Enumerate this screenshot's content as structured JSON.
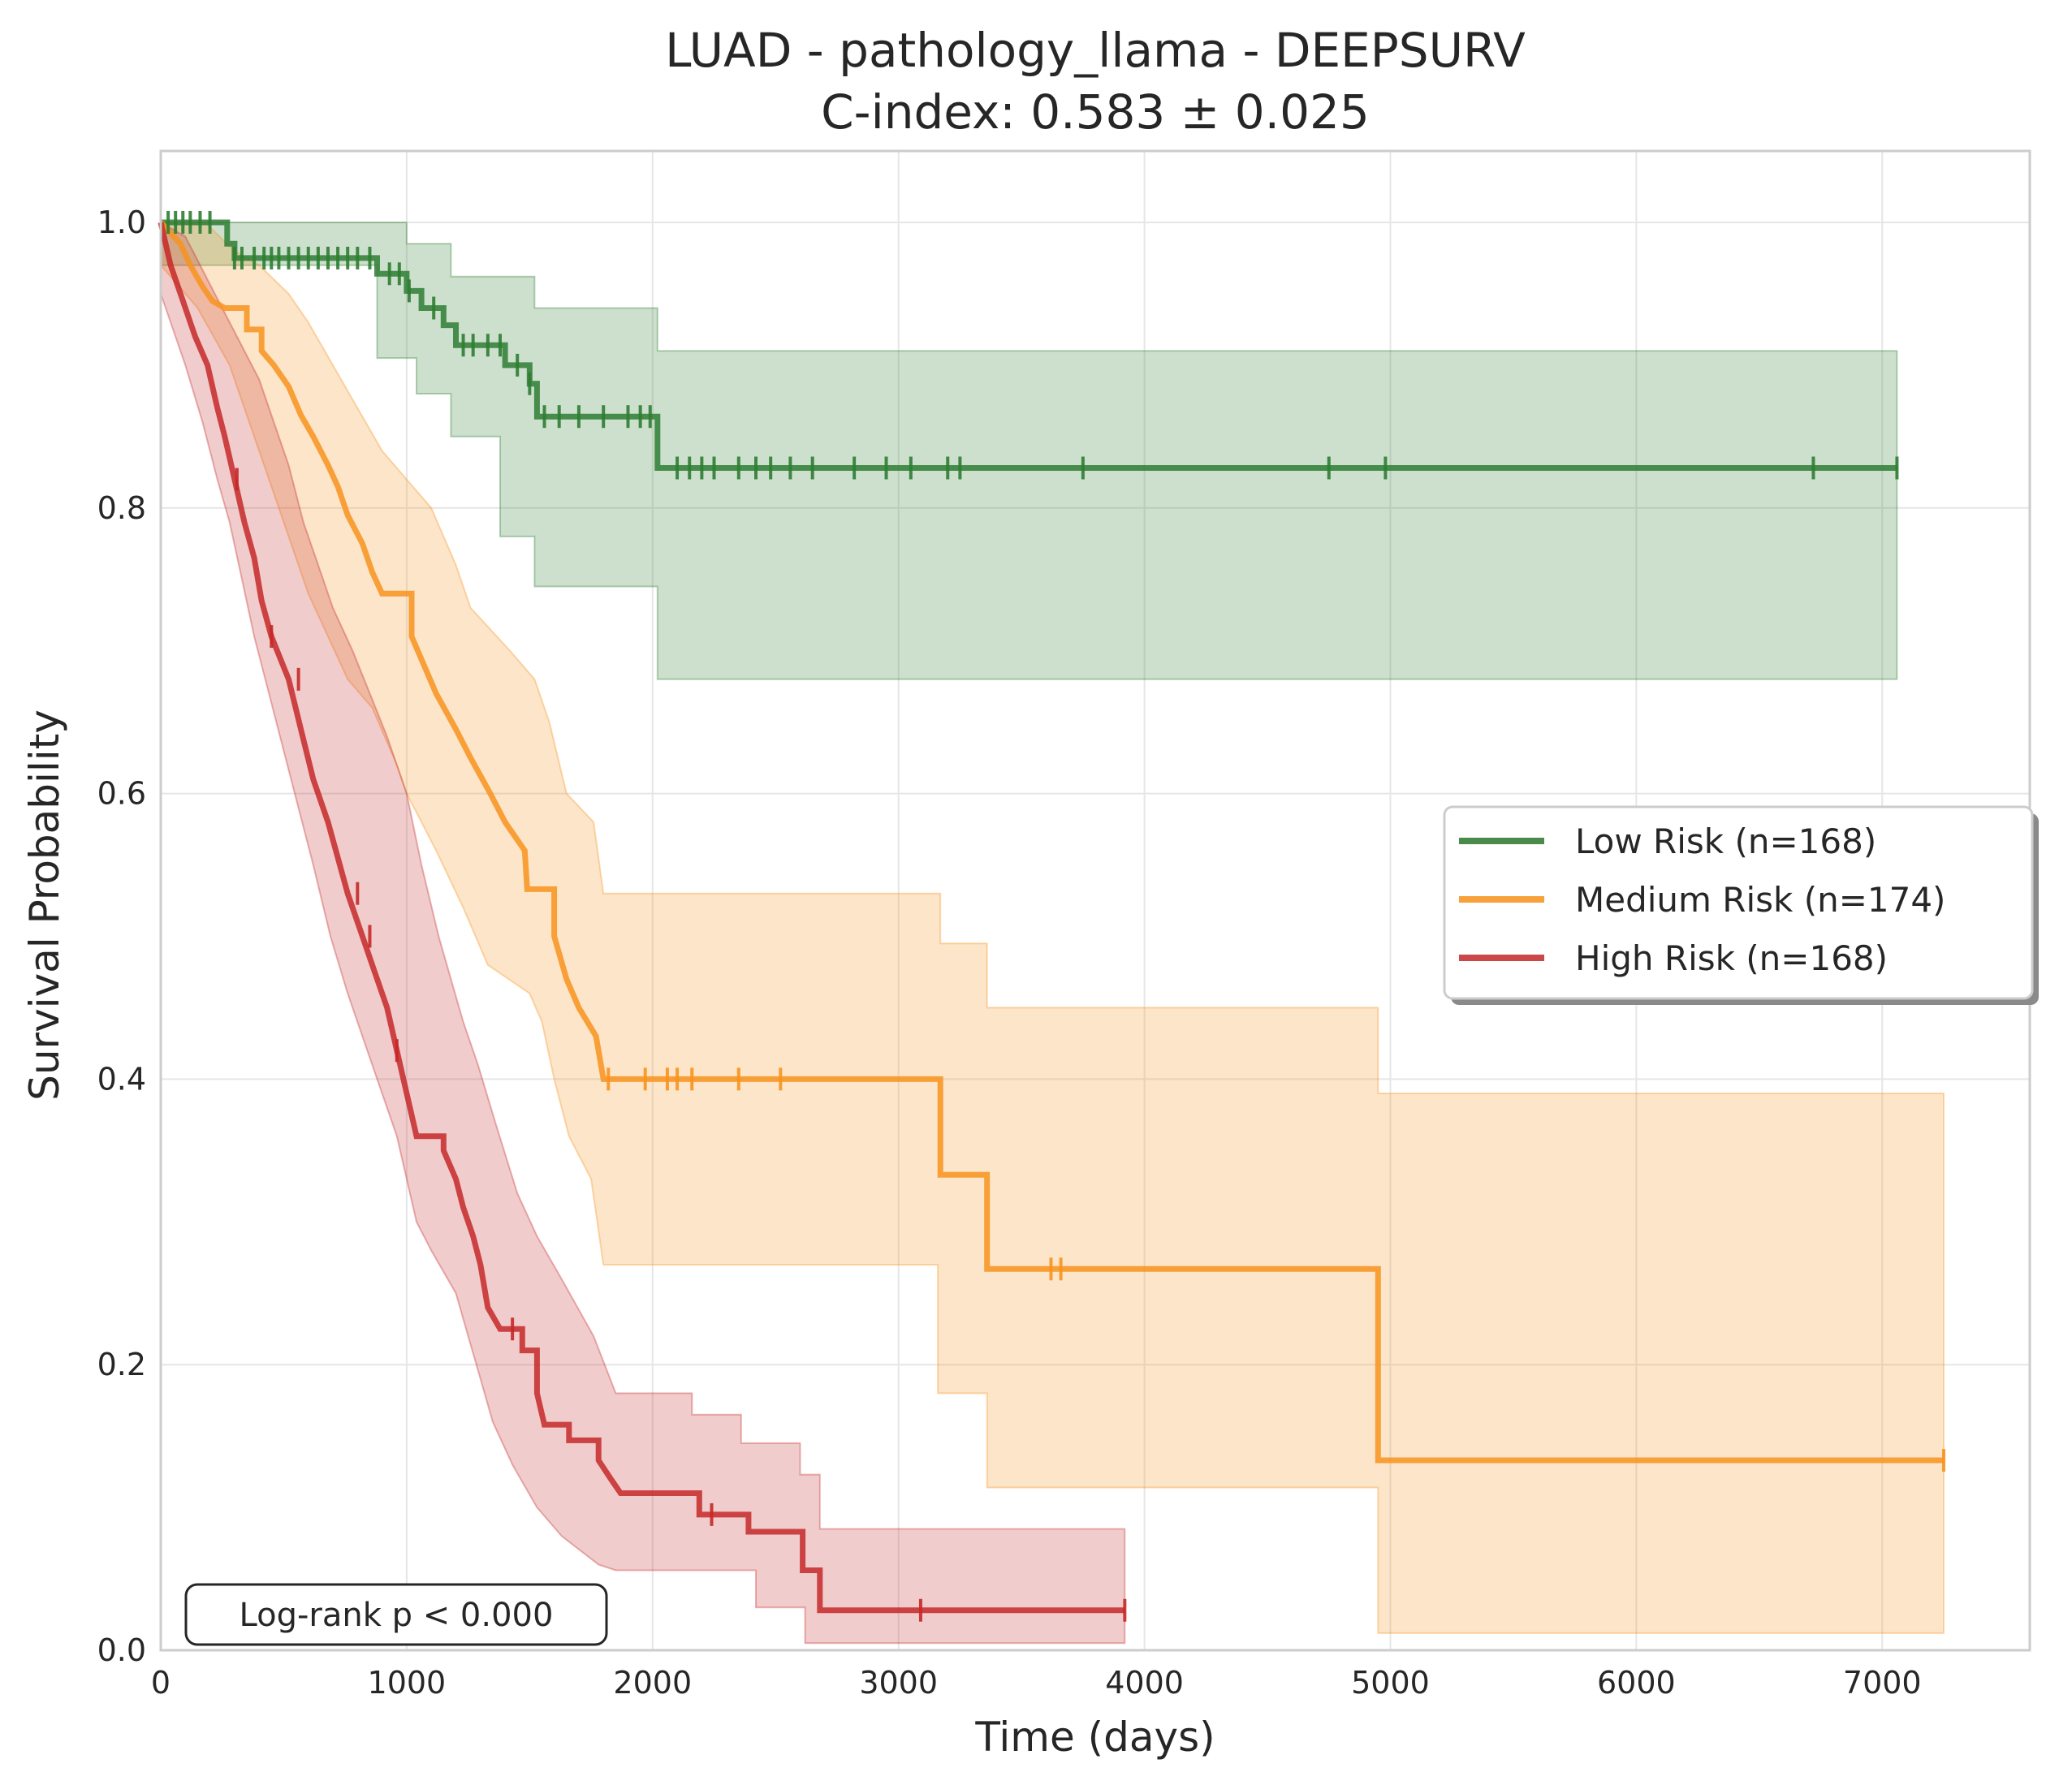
{
  "chart_data": {
    "type": "line",
    "title_line1": "LUAD - pathology_llama - DEEPSURV",
    "title_line2": "C-index: 0.583 ± 0.025",
    "xlabel": "Time (days)",
    "ylabel": "Survival Probability",
    "xlim": [
      0,
      7600
    ],
    "ylim": [
      0,
      1.05
    ],
    "x_ticks": [
      0,
      1000,
      2000,
      3000,
      4000,
      5000,
      6000,
      7000
    ],
    "y_ticks": [
      0.0,
      0.2,
      0.4,
      0.6,
      0.8,
      1.0
    ],
    "x_tick_labels": [
      "0",
      "1000",
      "2000",
      "3000",
      "4000",
      "5000",
      "6000",
      "7000"
    ],
    "y_tick_labels": [
      "0.0",
      "0.2",
      "0.4",
      "0.6",
      "0.8",
      "1.0"
    ],
    "grid": true,
    "legend_position": "center-right",
    "annotation": "Log-rank p < 0.000",
    "series": [
      {
        "name": "Low Risk (n=168)",
        "color": "#2e7d32",
        "points": [
          [
            0,
            1.0
          ],
          [
            270,
            1.0
          ],
          [
            270,
            0.985
          ],
          [
            300,
            0.985
          ],
          [
            300,
            0.975
          ],
          [
            880,
            0.975
          ],
          [
            880,
            0.964
          ],
          [
            1000,
            0.964
          ],
          [
            1000,
            0.952
          ],
          [
            1060,
            0.952
          ],
          [
            1060,
            0.94
          ],
          [
            1150,
            0.94
          ],
          [
            1150,
            0.928
          ],
          [
            1200,
            0.928
          ],
          [
            1200,
            0.914
          ],
          [
            1400,
            0.914
          ],
          [
            1400,
            0.9
          ],
          [
            1500,
            0.9
          ],
          [
            1500,
            0.887
          ],
          [
            1530,
            0.887
          ],
          [
            1530,
            0.864
          ],
          [
            2020,
            0.864
          ],
          [
            2020,
            0.828
          ],
          [
            7060,
            0.828
          ]
        ],
        "ci_lower": [
          [
            0,
            0.97
          ],
          [
            880,
            0.97
          ],
          [
            880,
            0.905
          ],
          [
            1040,
            0.905
          ],
          [
            1040,
            0.88
          ],
          [
            1180,
            0.88
          ],
          [
            1180,
            0.85
          ],
          [
            1380,
            0.85
          ],
          [
            1380,
            0.78
          ],
          [
            1520,
            0.78
          ],
          [
            1520,
            0.745
          ],
          [
            2020,
            0.745
          ],
          [
            2020,
            0.68
          ],
          [
            7060,
            0.68
          ]
        ],
        "ci_upper": [
          [
            0,
            1.0
          ],
          [
            1000,
            1.0
          ],
          [
            1000,
            0.985
          ],
          [
            1180,
            0.985
          ],
          [
            1180,
            0.962
          ],
          [
            1520,
            0.962
          ],
          [
            1520,
            0.94
          ],
          [
            2020,
            0.94
          ],
          [
            2020,
            0.91
          ],
          [
            7060,
            0.91
          ]
        ],
        "censor_times": [
          30,
          60,
          90,
          120,
          160,
          200,
          300,
          330,
          380,
          420,
          450,
          480,
          520,
          560,
          600,
          640,
          680,
          720,
          760,
          800,
          850,
          930,
          970,
          1010,
          1110,
          1230,
          1270,
          1330,
          1380,
          1450,
          1500,
          1560,
          1620,
          1700,
          1800,
          1900,
          1950,
          1990,
          2100,
          2150,
          2200,
          2250,
          2350,
          2420,
          2480,
          2560,
          2650,
          2820,
          2950,
          3050,
          3200,
          3250,
          3750,
          4750,
          4980,
          6720,
          7060
        ]
      },
      {
        "name": "Medium Risk (n=174)",
        "color": "#f7931e",
        "points": [
          [
            0,
            1.0
          ],
          [
            80,
            0.985
          ],
          [
            120,
            0.97
          ],
          [
            170,
            0.955
          ],
          [
            210,
            0.945
          ],
          [
            260,
            0.94
          ],
          [
            350,
            0.94
          ],
          [
            350,
            0.925
          ],
          [
            410,
            0.925
          ],
          [
            410,
            0.91
          ],
          [
            460,
            0.9
          ],
          [
            520,
            0.885
          ],
          [
            570,
            0.865
          ],
          [
            620,
            0.85
          ],
          [
            680,
            0.83
          ],
          [
            720,
            0.815
          ],
          [
            760,
            0.795
          ],
          [
            820,
            0.775
          ],
          [
            860,
            0.755
          ],
          [
            900,
            0.74
          ],
          [
            1020,
            0.74
          ],
          [
            1020,
            0.71
          ],
          [
            1070,
            0.69
          ],
          [
            1120,
            0.67
          ],
          [
            1200,
            0.645
          ],
          [
            1260,
            0.625
          ],
          [
            1340,
            0.6
          ],
          [
            1400,
            0.58
          ],
          [
            1480,
            0.56
          ],
          [
            1490,
            0.533
          ],
          [
            1600,
            0.533
          ],
          [
            1600,
            0.5
          ],
          [
            1650,
            0.47
          ],
          [
            1700,
            0.45
          ],
          [
            1770,
            0.43
          ],
          [
            1800,
            0.4
          ],
          [
            3170,
            0.4
          ],
          [
            3170,
            0.333
          ],
          [
            3360,
            0.333
          ],
          [
            3360,
            0.267
          ],
          [
            4950,
            0.267
          ],
          [
            4950,
            0.133
          ],
          [
            7250,
            0.133
          ]
        ],
        "ci_lower": [
          [
            0,
            0.97
          ],
          [
            150,
            0.94
          ],
          [
            280,
            0.9
          ],
          [
            360,
            0.86
          ],
          [
            440,
            0.82
          ],
          [
            520,
            0.78
          ],
          [
            600,
            0.74
          ],
          [
            680,
            0.71
          ],
          [
            760,
            0.68
          ],
          [
            860,
            0.66
          ],
          [
            960,
            0.62
          ],
          [
            1000,
            0.6
          ],
          [
            1060,
            0.58
          ],
          [
            1120,
            0.56
          ],
          [
            1230,
            0.52
          ],
          [
            1330,
            0.48
          ],
          [
            1500,
            0.46
          ],
          [
            1550,
            0.44
          ],
          [
            1600,
            0.4
          ],
          [
            1660,
            0.36
          ],
          [
            1750,
            0.33
          ],
          [
            1800,
            0.27
          ],
          [
            3160,
            0.27
          ],
          [
            3160,
            0.18
          ],
          [
            3360,
            0.18
          ],
          [
            3360,
            0.114
          ],
          [
            4950,
            0.114
          ],
          [
            4950,
            0.012
          ],
          [
            7250,
            0.012
          ]
        ],
        "ci_upper": [
          [
            0,
            1.0
          ],
          [
            180,
            1.0
          ],
          [
            300,
            0.98
          ],
          [
            400,
            0.97
          ],
          [
            520,
            0.95
          ],
          [
            600,
            0.93
          ],
          [
            700,
            0.9
          ],
          [
            800,
            0.87
          ],
          [
            900,
            0.84
          ],
          [
            1000,
            0.82
          ],
          [
            1100,
            0.8
          ],
          [
            1200,
            0.76
          ],
          [
            1260,
            0.73
          ],
          [
            1420,
            0.7
          ],
          [
            1520,
            0.68
          ],
          [
            1580,
            0.65
          ],
          [
            1650,
            0.6
          ],
          [
            1760,
            0.58
          ],
          [
            1800,
            0.53
          ],
          [
            3170,
            0.53
          ],
          [
            3170,
            0.495
          ],
          [
            3360,
            0.495
          ],
          [
            3360,
            0.45
          ],
          [
            4950,
            0.45
          ],
          [
            4950,
            0.39
          ],
          [
            7250,
            0.39
          ]
        ],
        "censor_times": [
          1820,
          1970,
          2060,
          2100,
          2160,
          2350,
          2520,
          3620,
          3660,
          7250
        ]
      },
      {
        "name": "High Risk (n=168)",
        "color": "#c62828",
        "points": [
          [
            0,
            1.0
          ],
          [
            40,
            0.97
          ],
          [
            90,
            0.945
          ],
          [
            140,
            0.92
          ],
          [
            190,
            0.9
          ],
          [
            230,
            0.87
          ],
          [
            260,
            0.85
          ],
          [
            300,
            0.82
          ],
          [
            340,
            0.79
          ],
          [
            380,
            0.765
          ],
          [
            410,
            0.735
          ],
          [
            450,
            0.71
          ],
          [
            520,
            0.68
          ],
          [
            570,
            0.645
          ],
          [
            620,
            0.61
          ],
          [
            680,
            0.58
          ],
          [
            720,
            0.555
          ],
          [
            760,
            0.53
          ],
          [
            820,
            0.5
          ],
          [
            870,
            0.475
          ],
          [
            920,
            0.45
          ],
          [
            960,
            0.42
          ],
          [
            1000,
            0.39
          ],
          [
            1040,
            0.36
          ],
          [
            1150,
            0.36
          ],
          [
            1150,
            0.35
          ],
          [
            1200,
            0.33
          ],
          [
            1230,
            0.31
          ],
          [
            1270,
            0.29
          ],
          [
            1300,
            0.27
          ],
          [
            1330,
            0.24
          ],
          [
            1380,
            0.225
          ],
          [
            1470,
            0.225
          ],
          [
            1470,
            0.21
          ],
          [
            1530,
            0.21
          ],
          [
            1530,
            0.18
          ],
          [
            1560,
            0.158
          ],
          [
            1660,
            0.158
          ],
          [
            1660,
            0.147
          ],
          [
            1780,
            0.147
          ],
          [
            1780,
            0.133
          ],
          [
            1830,
            0.12
          ],
          [
            1870,
            0.11
          ],
          [
            2190,
            0.11
          ],
          [
            2190,
            0.095
          ],
          [
            2390,
            0.095
          ],
          [
            2390,
            0.083
          ],
          [
            2610,
            0.083
          ],
          [
            2610,
            0.056
          ],
          [
            2680,
            0.056
          ],
          [
            2680,
            0.028
          ],
          [
            3920,
            0.028
          ]
        ],
        "ci_lower": [
          [
            0,
            0.95
          ],
          [
            100,
            0.9
          ],
          [
            170,
            0.86
          ],
          [
            230,
            0.82
          ],
          [
            280,
            0.79
          ],
          [
            330,
            0.75
          ],
          [
            380,
            0.71
          ],
          [
            440,
            0.67
          ],
          [
            500,
            0.63
          ],
          [
            560,
            0.59
          ],
          [
            620,
            0.55
          ],
          [
            690,
            0.5
          ],
          [
            760,
            0.46
          ],
          [
            840,
            0.42
          ],
          [
            900,
            0.39
          ],
          [
            960,
            0.36
          ],
          [
            1000,
            0.33
          ],
          [
            1040,
            0.3
          ],
          [
            1100,
            0.28
          ],
          [
            1200,
            0.25
          ],
          [
            1250,
            0.22
          ],
          [
            1300,
            0.19
          ],
          [
            1350,
            0.16
          ],
          [
            1430,
            0.13
          ],
          [
            1530,
            0.1
          ],
          [
            1630,
            0.08
          ],
          [
            1780,
            0.06
          ],
          [
            1850,
            0.056
          ],
          [
            2420,
            0.056
          ],
          [
            2420,
            0.03
          ],
          [
            2620,
            0.03
          ],
          [
            2620,
            0.005
          ],
          [
            3920,
            0.005
          ]
        ],
        "ci_upper": [
          [
            0,
            1.0
          ],
          [
            100,
            0.99
          ],
          [
            160,
            0.97
          ],
          [
            220,
            0.95
          ],
          [
            280,
            0.93
          ],
          [
            340,
            0.91
          ],
          [
            400,
            0.89
          ],
          [
            460,
            0.86
          ],
          [
            520,
            0.83
          ],
          [
            580,
            0.79
          ],
          [
            640,
            0.76
          ],
          [
            700,
            0.73
          ],
          [
            780,
            0.7
          ],
          [
            850,
            0.67
          ],
          [
            920,
            0.64
          ],
          [
            1000,
            0.6
          ],
          [
            1060,
            0.55
          ],
          [
            1130,
            0.5
          ],
          [
            1180,
            0.47
          ],
          [
            1230,
            0.44
          ],
          [
            1290,
            0.41
          ],
          [
            1360,
            0.37
          ],
          [
            1450,
            0.32
          ],
          [
            1530,
            0.29
          ],
          [
            1630,
            0.26
          ],
          [
            1760,
            0.22
          ],
          [
            1850,
            0.18
          ],
          [
            2160,
            0.18
          ],
          [
            2160,
            0.165
          ],
          [
            2360,
            0.165
          ],
          [
            2360,
            0.145
          ],
          [
            2600,
            0.145
          ],
          [
            2600,
            0.123
          ],
          [
            2680,
            0.123
          ],
          [
            2680,
            0.085
          ],
          [
            3920,
            0.085
          ]
        ],
        "censor_times": [
          310,
          450,
          560,
          800,
          850,
          960,
          1430,
          2240,
          3090,
          3920
        ]
      }
    ]
  }
}
